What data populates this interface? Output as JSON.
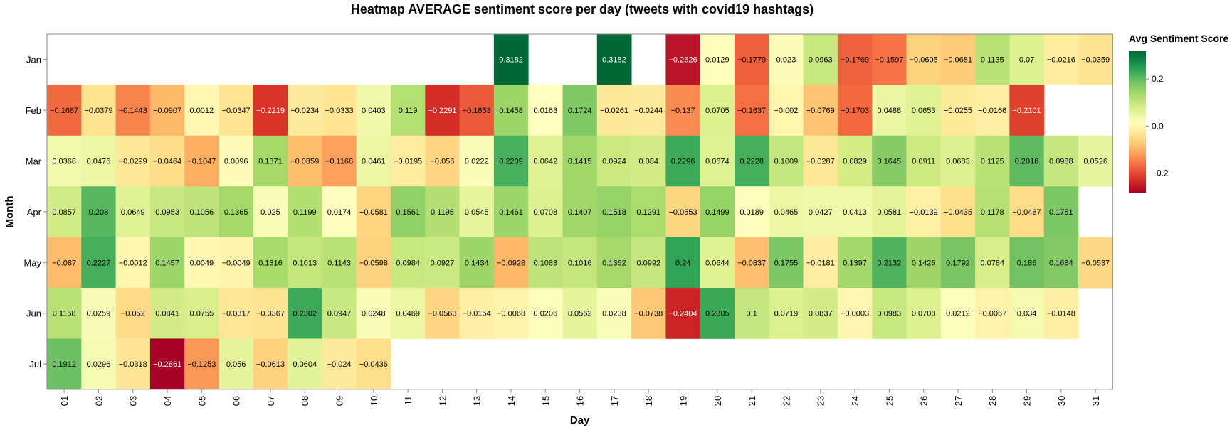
{
  "chart_data": {
    "type": "heatmap",
    "title": "Heatmap AVERAGE sentiment score per day (tweets with covid19 hashtags)",
    "xlabel": "Day",
    "ylabel": "Month",
    "x_categories": [
      "01",
      "02",
      "03",
      "04",
      "05",
      "06",
      "07",
      "08",
      "09",
      "10",
      "11",
      "12",
      "13",
      "14",
      "15",
      "16",
      "17",
      "18",
      "19",
      "20",
      "21",
      "22",
      "23",
      "24",
      "25",
      "26",
      "27",
      "28",
      "29",
      "30",
      "31"
    ],
    "y_categories": [
      "Jan",
      "Feb",
      "Mar",
      "Apr",
      "May",
      "Jun",
      "Jul"
    ],
    "values": [
      [
        null,
        null,
        null,
        null,
        null,
        null,
        null,
        null,
        null,
        null,
        null,
        null,
        null,
        0.3182,
        null,
        null,
        0.3182,
        null,
        -0.2626,
        0.0129,
        -0.1779,
        0.023,
        0.0963,
        -0.1769,
        -0.1597,
        -0.0605,
        -0.0681,
        0.1135,
        0.07,
        -0.0216,
        -0.0359
      ],
      [
        -0.1687,
        -0.0379,
        -0.1443,
        -0.0907,
        0.0012,
        -0.0347,
        -0.2219,
        -0.0234,
        -0.0333,
        0.0403,
        0.119,
        -0.2291,
        -0.1853,
        0.1458,
        0.0163,
        0.1724,
        -0.0261,
        -0.0244,
        -0.137,
        0.0705,
        -0.1637,
        -0.002,
        -0.0769,
        -0.1703,
        0.0488,
        0.0653,
        -0.0255,
        -0.0166,
        -0.2101,
        null,
        null
      ],
      [
        0.0368,
        0.0476,
        -0.0299,
        -0.0464,
        -0.1047,
        0.0096,
        0.1371,
        -0.0859,
        -0.1168,
        0.0461,
        -0.0195,
        -0.056,
        0.0222,
        0.2209,
        0.0642,
        0.1415,
        0.0924,
        0.084,
        0.2296,
        0.0674,
        0.2228,
        0.1009,
        -0.0287,
        0.0829,
        0.1645,
        0.0911,
        0.0683,
        0.1125,
        0.2018,
        0.0988,
        0.0526
      ],
      [
        0.0857,
        0.208,
        0.0649,
        0.0953,
        0.1056,
        0.1365,
        0.025,
        0.1199,
        0.0174,
        -0.0581,
        0.1561,
        0.1195,
        0.0545,
        0.1461,
        0.0708,
        0.1407,
        0.1518,
        0.1291,
        -0.0553,
        0.1499,
        0.0189,
        0.0465,
        0.0427,
        0.0413,
        0.0581,
        -0.0139,
        -0.0435,
        0.1178,
        -0.0487,
        0.1751,
        null
      ],
      [
        -0.087,
        0.2227,
        -0.0012,
        0.1457,
        0.0049,
        -0.0049,
        0.1316,
        0.1013,
        0.1143,
        -0.0598,
        0.0984,
        0.0927,
        0.1434,
        -0.0928,
        0.1083,
        0.1016,
        0.1362,
        0.0992,
        0.24,
        0.0644,
        -0.0837,
        0.1755,
        -0.0181,
        0.1397,
        0.2132,
        0.1426,
        0.1792,
        0.0784,
        0.186,
        0.1684,
        -0.0537
      ],
      [
        0.1158,
        0.0259,
        -0.052,
        0.0841,
        0.0755,
        -0.0317,
        -0.0367,
        0.2302,
        0.0947,
        0.0248,
        0.0469,
        -0.0563,
        -0.0154,
        -0.0068,
        0.0206,
        0.0562,
        0.0238,
        -0.0738,
        -0.2404,
        0.2305,
        0.1,
        0.0719,
        0.0837,
        -0.0003,
        0.0983,
        0.0708,
        0.0212,
        -0.0067,
        0.034,
        -0.0148,
        null
      ],
      [
        0.1912,
        0.0296,
        -0.0318,
        -0.2861,
        -0.1253,
        0.056,
        -0.0613,
        0.0604,
        -0.024,
        -0.0436,
        null,
        null,
        null,
        null,
        null,
        null,
        null,
        null,
        null,
        null,
        null,
        null,
        null,
        null,
        null,
        null,
        null,
        null,
        null,
        null,
        null
      ]
    ],
    "color_range": [
      -0.2861,
      0.3182
    ],
    "colormap": [
      "#a50026",
      "#d73027",
      "#f46d43",
      "#fdae61",
      "#fee08b",
      "#ffffbf",
      "#d9ef8b",
      "#a6d96a",
      "#66bd63",
      "#1a9850",
      "#006837"
    ],
    "legend": {
      "title": "Avg Sentiment Score",
      "ticks": [
        "0.2",
        "0.0",
        "−0.2"
      ],
      "tick_values": [
        0.2,
        0.0,
        -0.2
      ],
      "placement": "right"
    },
    "grid": false
  }
}
